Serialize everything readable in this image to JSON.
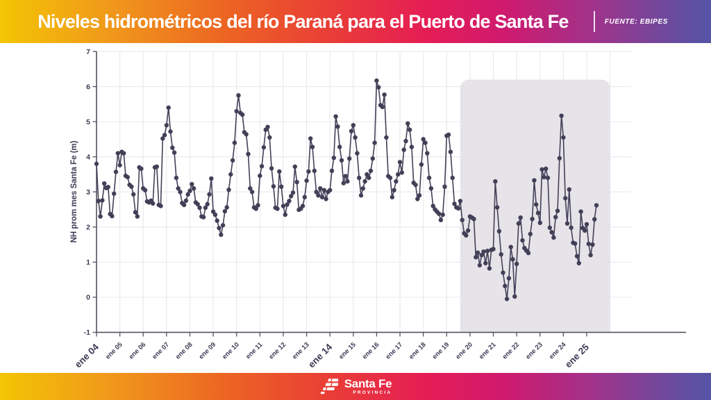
{
  "header": {
    "title": "Niveles hidrométricos del río Paraná para el Puerto de Santa Fe",
    "source": "FUENTE: EBIPES"
  },
  "footer": {
    "brand": "Santa Fe",
    "province": "PROVINCIA"
  },
  "colors": {
    "banner_gradient": [
      "#f3c504",
      "#f0971b",
      "#ec6423",
      "#e93c38",
      "#e51d55",
      "#cf1a6e",
      "#a23289",
      "#72489c",
      "#5454a6"
    ],
    "series": "#433f57",
    "grid": "#e9e7ed",
    "highlight_fill": "#e4e2e7",
    "axis": "#55515f",
    "label": "#3e3a54"
  },
  "chart_data": {
    "type": "line",
    "title": "",
    "xlabel": "",
    "ylabel": "NH prom mes Santa Fe (m)",
    "ylim": [
      -1,
      7
    ],
    "y_ticks": [
      7,
      6,
      5,
      4,
      3,
      2,
      1,
      0,
      -1
    ],
    "grid": "on",
    "frequency": "monthly",
    "first_month_label": "ene 04",
    "x_tick_labels": [
      "ene 04",
      "ene 05",
      "ene 06",
      "ene 07",
      "ene 08",
      "ene 09",
      "ene 10",
      "ene 11",
      "ene 12",
      "ene 13",
      "ene 14",
      "ene 15",
      "ene 16",
      "ene 17",
      "ene 18",
      "ene 19",
      "ene 20",
      "ene 21",
      "ene 22",
      "ene 23",
      "ene 24",
      "ene 25"
    ],
    "emphasized_tick_indexes": [
      0,
      10,
      21
    ],
    "highlight_region": {
      "start_month_index": 187,
      "end_month_index": 264,
      "top_value": 6.2
    },
    "monthly_values": [
      3.8,
      2.74,
      2.3,
      2.76,
      3.24,
      3.11,
      3.14,
      2.37,
      2.31,
      2.95,
      3.57,
      4.1,
      3.76,
      4.14,
      4.1,
      3.46,
      3.42,
      3.2,
      3.15,
      2.93,
      2.42,
      2.3,
      3.7,
      3.66,
      3.1,
      3.05,
      2.73,
      2.7,
      2.75,
      2.67,
      3.7,
      3.72,
      2.63,
      2.6,
      4.52,
      4.62,
      4.9,
      5.4,
      4.72,
      4.26,
      4.12,
      3.4,
      3.1,
      3.0,
      2.68,
      2.63,
      2.75,
      2.93,
      3.03,
      3.22,
      3.1,
      2.7,
      2.65,
      2.55,
      2.3,
      2.28,
      2.55,
      2.65,
      2.93,
      3.38,
      2.44,
      2.35,
      2.18,
      1.97,
      1.78,
      2.05,
      2.45,
      2.56,
      3.06,
      3.5,
      3.9,
      4.4,
      5.3,
      5.75,
      5.25,
      5.2,
      4.7,
      4.64,
      4.08,
      3.1,
      3.0,
      2.56,
      2.52,
      2.62,
      3.46,
      3.73,
      4.27,
      4.77,
      4.85,
      4.55,
      3.67,
      3.16,
      2.55,
      2.52,
      3.58,
      3.15,
      2.6,
      2.35,
      2.64,
      2.74,
      2.88,
      2.98,
      3.72,
      3.28,
      2.49,
      2.52,
      2.6,
      2.85,
      3.32,
      3.58,
      4.52,
      4.28,
      3.6,
      3.0,
      2.9,
      3.1,
      2.85,
      3.05,
      2.8,
      3.0,
      3.05,
      3.6,
      3.97,
      5.15,
      4.86,
      4.28,
      3.9,
      3.25,
      3.45,
      3.3,
      3.95,
      4.73,
      4.9,
      4.55,
      4.1,
      3.4,
      2.9,
      3.1,
      3.3,
      3.5,
      3.4,
      3.6,
      3.95,
      4.4,
      6.17,
      5.98,
      5.47,
      5.42,
      5.77,
      4.55,
      3.45,
      3.4,
      2.85,
      3.05,
      3.3,
      3.5,
      3.85,
      3.55,
      4.2,
      4.45,
      4.95,
      4.77,
      4.28,
      3.26,
      3.2,
      2.8,
      2.9,
      3.78,
      4.5,
      4.4,
      4.1,
      3.4,
      3.1,
      2.6,
      2.5,
      2.44,
      2.38,
      2.2,
      2.35,
      3.15,
      4.6,
      4.63,
      4.14,
      3.4,
      2.66,
      2.56,
      2.53,
      2.74,
      2.2,
      1.82,
      1.76,
      1.9,
      2.3,
      2.27,
      2.23,
      1.14,
      1.27,
      0.91,
      1.2,
      1.3,
      0.97,
      1.32,
      0.82,
      1.35,
      1.37,
      3.3,
      2.56,
      1.88,
      1.22,
      0.7,
      0.32,
      -0.05,
      0.54,
      1.43,
      1.08,
      0.02,
      0.95,
      2.1,
      2.27,
      1.62,
      1.4,
      1.33,
      1.26,
      1.8,
      2.23,
      3.33,
      2.64,
      2.4,
      2.12,
      3.64,
      3.42,
      3.66,
      3.4,
      1.98,
      1.85,
      1.7,
      2.28,
      2.46,
      3.96,
      5.17,
      4.55,
      2.82,
      2.1,
      3.07,
      1.98,
      1.55,
      1.53,
      1.17,
      0.97,
      2.44,
      1.97,
      1.9,
      2.08,
      1.52,
      1.2,
      1.5,
      2.22,
      2.62
    ]
  }
}
